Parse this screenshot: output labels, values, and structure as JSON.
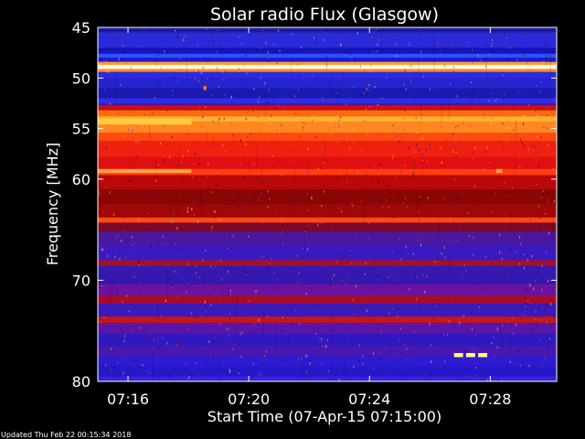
{
  "chart_data": {
    "type": "heatmap",
    "title": "Solar radio Flux (Glasgow)",
    "xlabel": "Start Time (07-Apr-15 07:15:00)",
    "ylabel": "Frequency [MHz]",
    "x_tick_labels": [
      "07:16",
      "07:20",
      "07:24",
      "07:28"
    ],
    "x_tick_minutes": [
      16,
      20,
      24,
      28
    ],
    "xlim_minutes": [
      15,
      30.2
    ],
    "y_tick_labels": [
      "45",
      "50",
      "55",
      "60",
      "70",
      "80"
    ],
    "y_tick_values": [
      45,
      50,
      55,
      60,
      70,
      80
    ],
    "ylim_mhz": [
      45,
      80
    ],
    "grid": false,
    "frequency_bands": [
      {
        "from_mhz": 45.0,
        "to_mhz": 45.5,
        "color": "#1a1aa0"
      },
      {
        "from_mhz": 45.5,
        "to_mhz": 47.0,
        "color": "#2a2ad8"
      },
      {
        "from_mhz": 47.0,
        "to_mhz": 47.6,
        "color": "#1414b8"
      },
      {
        "from_mhz": 47.6,
        "to_mhz": 48.0,
        "color": "#3050ff"
      },
      {
        "from_mhz": 48.0,
        "to_mhz": 48.4,
        "color": "#1a1ac8"
      },
      {
        "from_mhz": 48.4,
        "to_mhz": 48.7,
        "color": "#ff9a40"
      },
      {
        "from_mhz": 48.7,
        "to_mhz": 49.1,
        "color": "#ffffd0"
      },
      {
        "from_mhz": 49.1,
        "to_mhz": 49.4,
        "color": "#ff8a30"
      },
      {
        "from_mhz": 49.4,
        "to_mhz": 50.0,
        "color": "#2a2ae0"
      },
      {
        "from_mhz": 50.0,
        "to_mhz": 51.0,
        "color": "#2525d0"
      },
      {
        "from_mhz": 51.0,
        "to_mhz": 52.0,
        "color": "#1a1ab0"
      },
      {
        "from_mhz": 52.0,
        "to_mhz": 52.5,
        "color": "#2e2ee6"
      },
      {
        "from_mhz": 52.5,
        "to_mhz": 52.7,
        "color": "#5010a0"
      },
      {
        "from_mhz": 52.7,
        "to_mhz": 53.2,
        "color": "#c81010"
      },
      {
        "from_mhz": 53.2,
        "to_mhz": 53.8,
        "color": "#ff6a10"
      },
      {
        "from_mhz": 53.8,
        "to_mhz": 54.3,
        "color": "#ffb030"
      },
      {
        "from_mhz": 54.3,
        "to_mhz": 55.4,
        "color": "#ff8820"
      },
      {
        "from_mhz": 55.4,
        "to_mhz": 56.2,
        "color": "#ff4a10"
      },
      {
        "from_mhz": 56.2,
        "to_mhz": 57.8,
        "color": "#f02010"
      },
      {
        "from_mhz": 57.8,
        "to_mhz": 59.0,
        "color": "#e01010"
      },
      {
        "from_mhz": 59.0,
        "to_mhz": 59.6,
        "color": "#ff3c10"
      },
      {
        "from_mhz": 59.6,
        "to_mhz": 61.0,
        "color": "#b80808"
      },
      {
        "from_mhz": 61.0,
        "to_mhz": 62.5,
        "color": "#8a0606"
      },
      {
        "from_mhz": 62.5,
        "to_mhz": 63.8,
        "color": "#a00808"
      },
      {
        "from_mhz": 63.8,
        "to_mhz": 64.3,
        "color": "#ff4a14"
      },
      {
        "from_mhz": 64.3,
        "to_mhz": 65.2,
        "color": "#7a0a2a"
      },
      {
        "from_mhz": 65.2,
        "to_mhz": 66.5,
        "color": "#4a18a0"
      },
      {
        "from_mhz": 66.5,
        "to_mhz": 68.0,
        "color": "#3a1ac0"
      },
      {
        "from_mhz": 68.0,
        "to_mhz": 68.6,
        "color": "#a01030"
      },
      {
        "from_mhz": 68.6,
        "to_mhz": 70.4,
        "color": "#3418b0"
      },
      {
        "from_mhz": 70.4,
        "to_mhz": 71.5,
        "color": "#6a12a0"
      },
      {
        "from_mhz": 71.5,
        "to_mhz": 72.3,
        "color": "#a80a2a"
      },
      {
        "from_mhz": 72.3,
        "to_mhz": 73.6,
        "color": "#3a1ab8"
      },
      {
        "from_mhz": 73.6,
        "to_mhz": 74.2,
        "color": "#c81414"
      },
      {
        "from_mhz": 74.2,
        "to_mhz": 75.3,
        "color": "#5a14a8"
      },
      {
        "from_mhz": 75.3,
        "to_mhz": 76.5,
        "color": "#3018c0"
      },
      {
        "from_mhz": 76.5,
        "to_mhz": 77.5,
        "color": "#4818b0"
      },
      {
        "from_mhz": 77.5,
        "to_mhz": 78.5,
        "color": "#2e1ad0"
      },
      {
        "from_mhz": 78.5,
        "to_mhz": 79.5,
        "color": "#2418c8"
      },
      {
        "from_mhz": 79.5,
        "to_mhz": 80.0,
        "color": "#3a20d8"
      }
    ],
    "bursts": [
      {
        "start_min": 15.0,
        "end_min": 18.1,
        "from_mhz": 54.0,
        "to_mhz": 54.6,
        "color": "#ffcc40"
      },
      {
        "start_min": 15.0,
        "end_min": 18.1,
        "from_mhz": 59.0,
        "to_mhz": 59.4,
        "color": "#ffa040"
      },
      {
        "start_min": 28.2,
        "end_min": 28.4,
        "from_mhz": 59.0,
        "to_mhz": 59.4,
        "color": "#ffa040"
      },
      {
        "start_min": 26.8,
        "end_min": 27.1,
        "from_mhz": 77.2,
        "to_mhz": 77.6,
        "color": "#ffff80"
      },
      {
        "start_min": 27.2,
        "end_min": 27.5,
        "from_mhz": 77.2,
        "to_mhz": 77.6,
        "color": "#ffff80"
      },
      {
        "start_min": 27.6,
        "end_min": 27.9,
        "from_mhz": 77.2,
        "to_mhz": 77.6,
        "color": "#ffff80"
      },
      {
        "start_min": 18.5,
        "end_min": 18.6,
        "from_mhz": 50.8,
        "to_mhz": 51.2,
        "color": "#ff7a20"
      }
    ],
    "footer": "Updated Thu Feb 22 00:15:34 2018"
  }
}
